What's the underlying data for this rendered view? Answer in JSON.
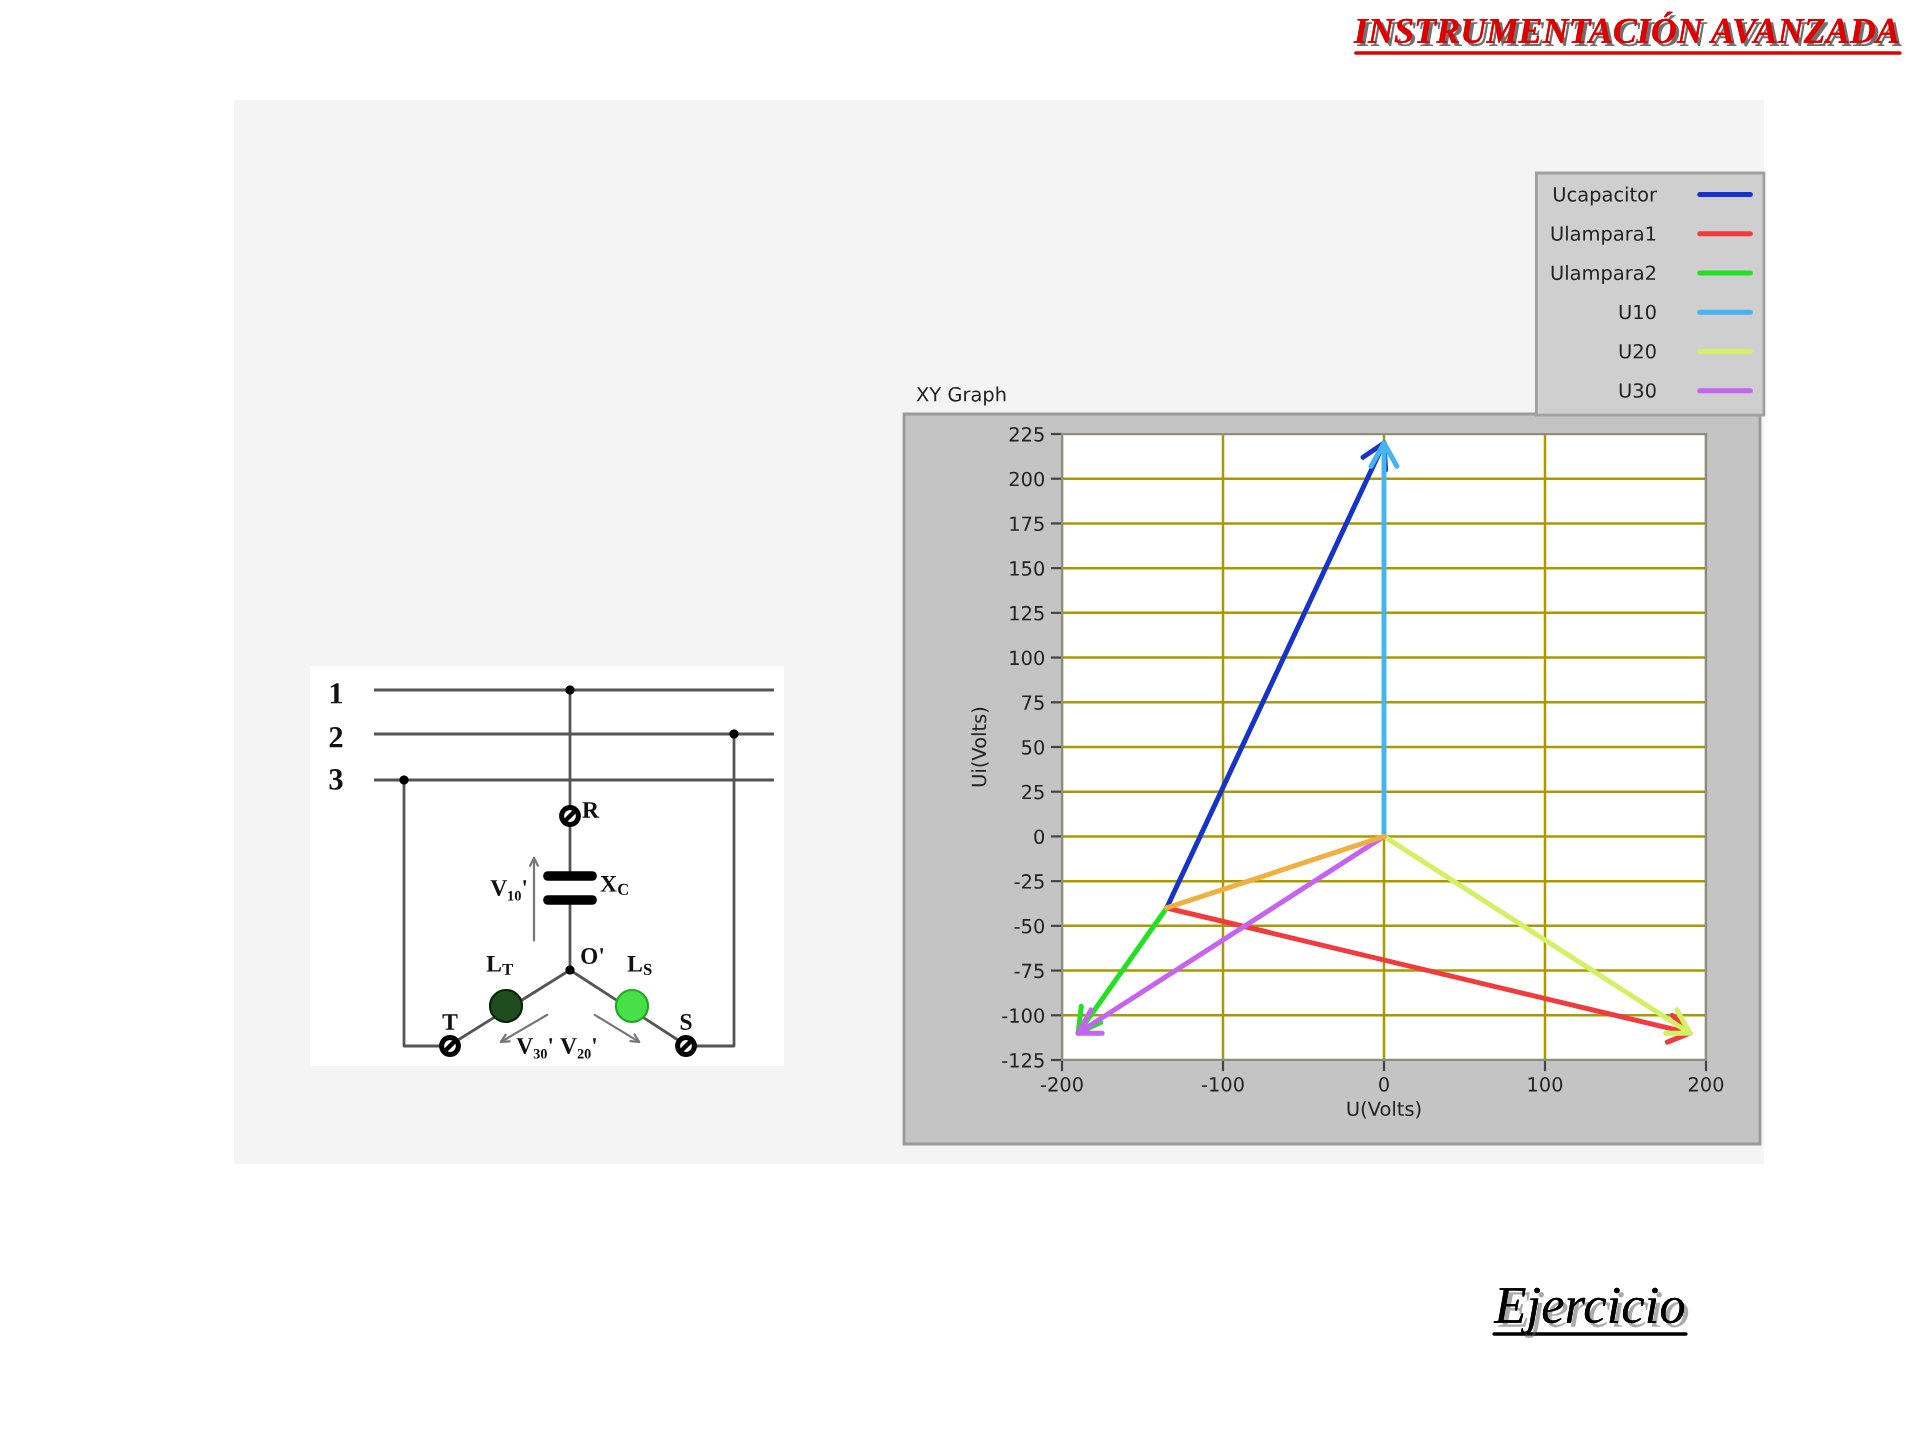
{
  "chart_data": {
    "type": "line",
    "title": "XY Graph",
    "xlabel": "U(Volts)",
    "ylabel": "Ui(Volts)",
    "annotations": [
      "INSTRUMENTACIÓN AVANZADA",
      "Ejercicio",
      "1",
      "2",
      "3",
      "R",
      "X$_{C}$",
      "V₁₀'",
      "L$_{T}$",
      "O'",
      "L$_{S}$",
      "T",
      "S",
      "V₃₀'",
      "V₂₀'"
    ],
    "xlim": [
      -200,
      200
    ],
    "xticks": [
      -200,
      -100,
      0,
      100,
      200
    ],
    "ylim": [
      -125,
      225
    ],
    "yticks": [
      -125,
      -100,
      -75,
      -50,
      -25,
      0,
      25,
      50,
      75,
      100,
      125,
      150,
      175,
      200,
      225
    ],
    "grid": true,
    "legend": "top right",
    "line_style": "solid",
    "series": [
      {
        "name": "Ucapacitor",
        "color": "#1634c8",
        "x": [
          -135,
          0,
          -13,
          0,
          1
        ],
        "values": [
          -40,
          220,
          212,
          220,
          205
        ]
      },
      {
        "name": "Ulampara1",
        "color": "#f03c3c",
        "x": [
          -135,
          190,
          179,
          190,
          176
        ],
        "values": [
          -40,
          -110,
          -100,
          -110,
          -115
        ]
      },
      {
        "name": "Ulampara2",
        "color": "#22e022",
        "x": [
          -135,
          -190,
          -188,
          -190,
          -176
        ],
        "values": [
          -40,
          -110,
          -95,
          -110,
          -104
        ]
      },
      {
        "name": "U10",
        "color": "#46b4f0",
        "x": [
          0,
          0,
          -8,
          0,
          8
        ],
        "values": [
          0,
          220,
          207,
          220,
          207
        ]
      },
      {
        "name": "U20",
        "color": "#d4f064",
        "x": [
          0,
          190,
          182,
          190,
          175
        ],
        "values": [
          0,
          -110,
          -97,
          -110,
          -110
        ]
      },
      {
        "name": "U30",
        "color": "#c464f0",
        "x": [
          0,
          -190,
          -182,
          -190,
          -175
        ],
        "values": [
          0,
          -110,
          -97,
          -110,
          -110
        ]
      },
      {
        "color": "#f0b040",
        "x": [
          0,
          -135
        ],
        "values": [
          0,
          -40
        ]
      }
    ]
  }
}
